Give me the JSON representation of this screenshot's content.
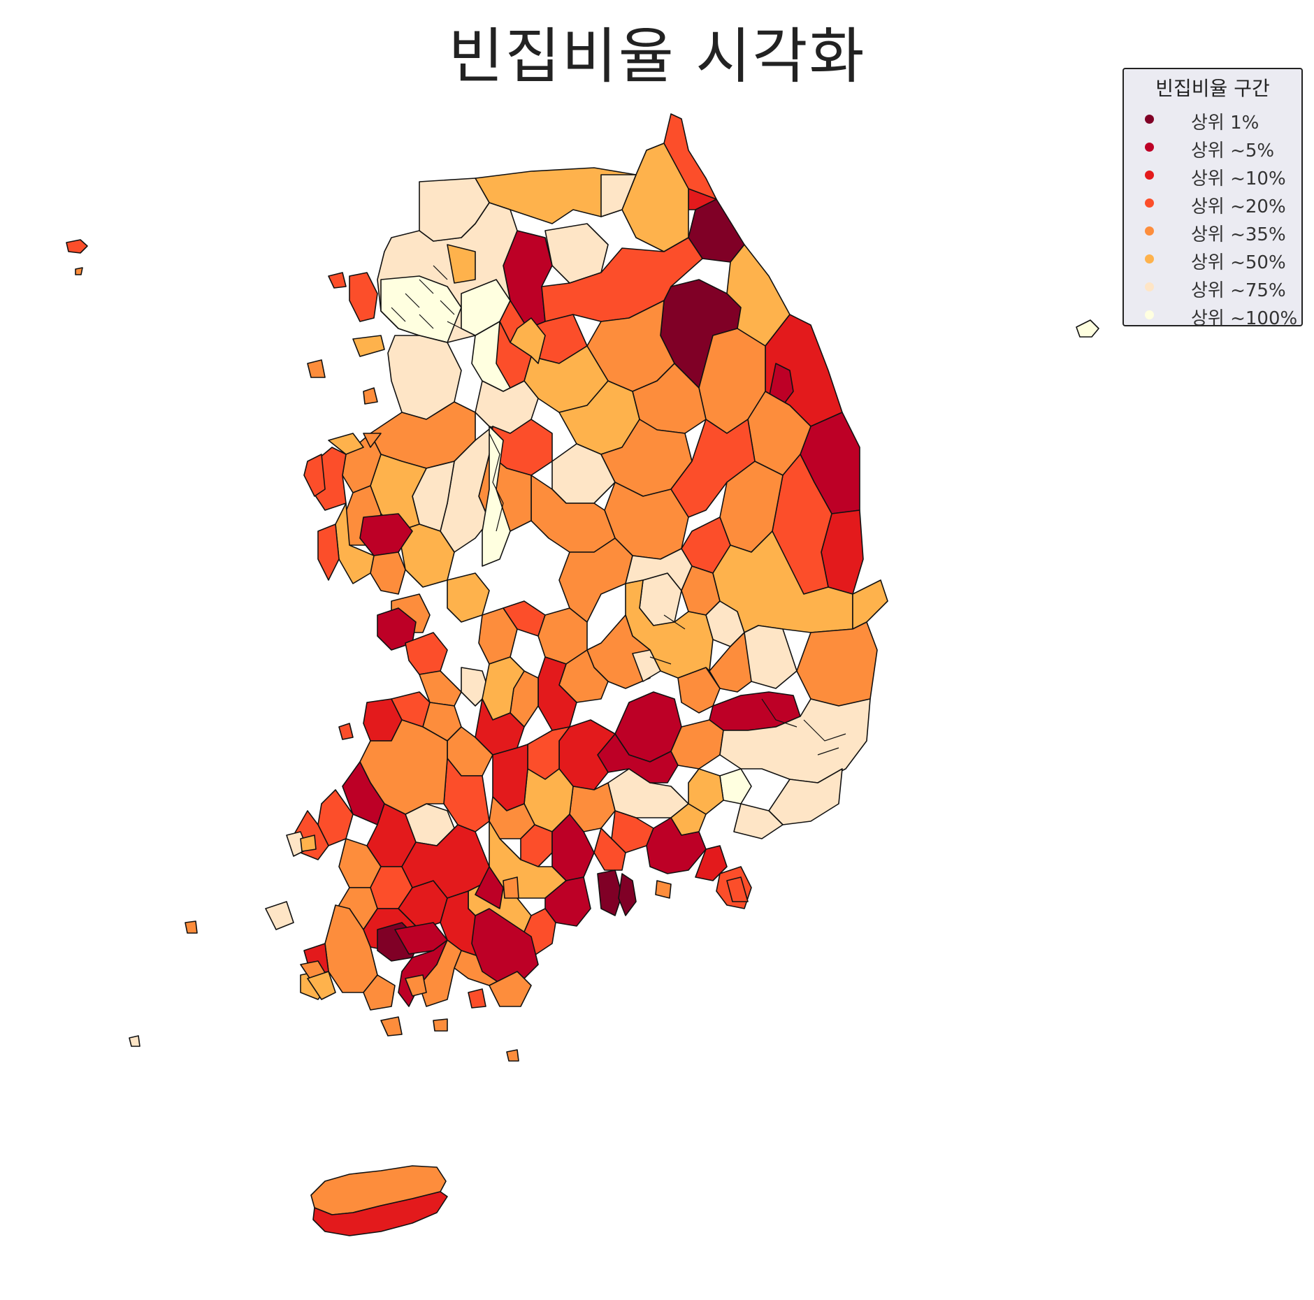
{
  "title": "빈집비율 시각화",
  "legend": {
    "title": "빈집비율 구간",
    "placement": "top-right",
    "items": [
      {
        "label": "상위 1%",
        "color": "#800026"
      },
      {
        "label": "상위 ~5%",
        "color": "#bd0026"
      },
      {
        "label": "상위 ~10%",
        "color": "#e31a1c"
      },
      {
        "label": "상위 ~20%",
        "color": "#fc4e2a"
      },
      {
        "label": "상위 ~35%",
        "color": "#fd8d3c"
      },
      {
        "label": "상위 ~50%",
        "color": "#feb24c"
      },
      {
        "label": "상위 ~75%",
        "color": "#fee5c6"
      },
      {
        "label": "상위 ~100%",
        "color": "#ffffe0"
      }
    ]
  },
  "map": {
    "subject": "South Korea districts choropleth",
    "background": "#ffffff",
    "border_color": "#111111"
  }
}
